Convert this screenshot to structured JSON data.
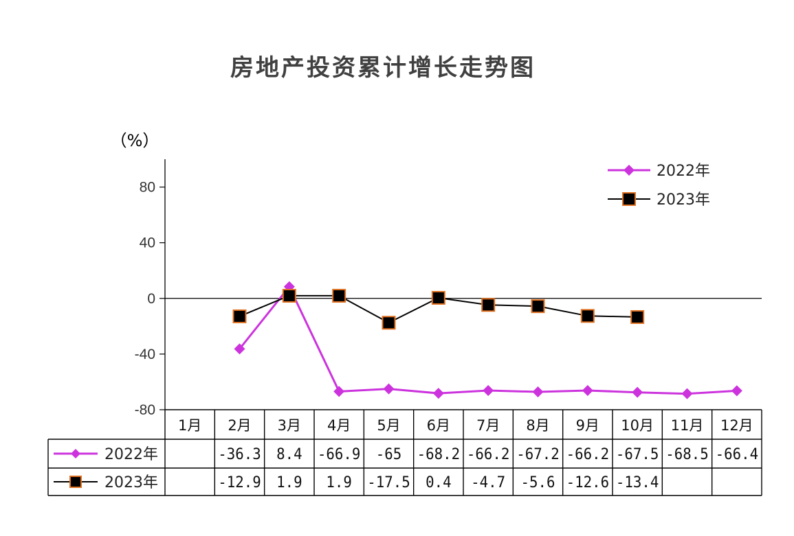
{
  "chart_data": {
    "type": "line",
    "title": "房地产投资累计增长走势图",
    "ylabel": "（%）",
    "ylim": [
      -80,
      100
    ],
    "yticks": [
      80,
      40,
      0,
      -40,
      -80
    ],
    "categories": [
      "1月",
      "2月",
      "3月",
      "4月",
      "5月",
      "6月",
      "7月",
      "8月",
      "9月",
      "10月",
      "11月",
      "12月"
    ],
    "series": [
      {
        "name": "2022年",
        "color": "#cc33dd",
        "marker": "diamond",
        "values": [
          null,
          -36.3,
          8.4,
          -66.9,
          -65,
          -68.2,
          -66.2,
          -67.2,
          -66.2,
          -67.5,
          -68.5,
          -66.4
        ],
        "labels": [
          "",
          "-36.3",
          "8.4",
          "-66.9",
          "-65",
          "-68.2",
          "-66.2",
          "-67.2",
          "-66.2",
          "-67.5",
          "-68.5",
          "-66.4"
        ]
      },
      {
        "name": "2023年",
        "color": "#000000",
        "marker_edge": "#e07020",
        "marker": "square",
        "values": [
          null,
          -12.9,
          1.9,
          1.9,
          -17.5,
          0.4,
          -4.7,
          -5.6,
          -12.6,
          -13.4,
          null,
          null
        ],
        "labels": [
          "",
          "-12.9",
          "1.9",
          "1.9",
          "-17.5",
          "0.4",
          "-4.7",
          "-5.6",
          "-12.6",
          "-13.4",
          "",
          ""
        ]
      }
    ],
    "legend_position": "top-right",
    "grid": false,
    "data_table": true
  }
}
